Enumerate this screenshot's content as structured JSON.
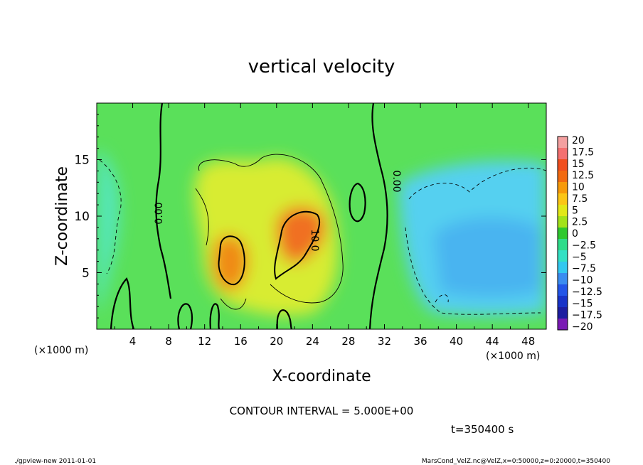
{
  "chart_data": {
    "type": "heatmap",
    "title": "vertical velocity",
    "xlabel": "X-coordinate",
    "ylabel": "Z-coordinate",
    "x_unit": "(×1000 m)",
    "y_unit": "(×1000 m)",
    "xlim": [
      0,
      50
    ],
    "ylim": [
      0,
      20
    ],
    "x_ticks": [
      "4",
      "8",
      "12",
      "16",
      "20",
      "24",
      "28",
      "32",
      "36",
      "40",
      "44",
      "48"
    ],
    "y_ticks": [
      "5",
      "10",
      "15"
    ],
    "colorbar_labels": [
      "20",
      "17.5",
      "15",
      "12.5",
      "10",
      "7.5",
      "5",
      "2.5",
      "0",
      "−2.5",
      "−5",
      "−7.5",
      "−10",
      "−12.5",
      "−15",
      "−17.5",
      "−20"
    ],
    "colorbar_colors": [
      "#f4a0a0",
      "#f47070",
      "#f04e1e",
      "#f26a10",
      "#f79a0a",
      "#fbc616",
      "#e2e818",
      "#a2e21a",
      "#2ec82e",
      "#2edc8a",
      "#33e0c4",
      "#33c8f0",
      "#3a8cf0",
      "#2255e8",
      "#1833c8",
      "#1d1da0",
      "#7a1ab4"
    ],
    "contour_labels": [
      "0.00",
      "0.00",
      "10.0"
    ],
    "contour_interval_text": "CONTOUR INTERVAL = 5.000E+00",
    "time_text": "t=350400 s",
    "footer_left": "./gpview-new  2011-01-01",
    "footer_right": "MarsCond_VelZ.nc@VelZ,x=0:50000,z=0:20000,t=350400"
  }
}
